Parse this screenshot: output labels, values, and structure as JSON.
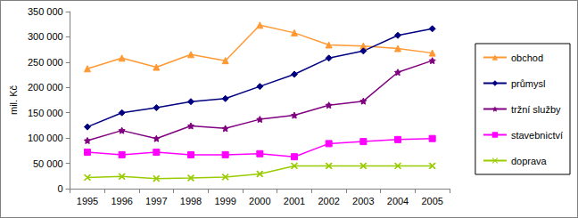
{
  "chart_data": {
    "type": "line",
    "y_label": "mil. Kč",
    "categories": [
      "1995",
      "1996",
      "1997",
      "1998",
      "1999",
      "2000",
      "2001",
      "2002",
      "2003",
      "2004",
      "2005"
    ],
    "series": [
      {
        "name": "obchod",
        "color": "#ff9933",
        "marker": "triangle",
        "values": [
          237000,
          258000,
          240000,
          265000,
          253000,
          323000,
          308000,
          284000,
          282000,
          277000,
          268000
        ]
      },
      {
        "name": "průmysl",
        "color": "#000080",
        "marker": "diamond",
        "values": [
          122000,
          150000,
          160000,
          172000,
          178000,
          202000,
          226000,
          258000,
          272000,
          303000,
          316000
        ]
      },
      {
        "name": "tržní služby",
        "color": "#800080",
        "marker": "star",
        "values": [
          95000,
          115000,
          99000,
          124000,
          119000,
          137000,
          145000,
          165000,
          173000,
          230000,
          253000
        ]
      },
      {
        "name": "stavebnictví",
        "color": "#ff00ff",
        "marker": "square",
        "values": [
          72000,
          67000,
          72000,
          67000,
          67000,
          69000,
          63000,
          89000,
          93000,
          97000,
          99000
        ]
      },
      {
        "name": "doprava",
        "color": "#99cc00",
        "marker": "cross",
        "values": [
          22000,
          24000,
          20000,
          21000,
          23000,
          29000,
          45000,
          45000,
          45000,
          45000,
          45000
        ]
      }
    ],
    "ylim": [
      0,
      350000
    ],
    "yticks": [
      0,
      {
        "value": 50000,
        "label": "50 000"
      },
      {
        "value": 100000,
        "label": "100 000"
      },
      {
        "value": 150000,
        "label": "150 000"
      },
      {
        "value": 200000,
        "label": "200 000"
      },
      {
        "value": 250000,
        "label": "250 000"
      },
      {
        "value": 300000,
        "label": "300 000"
      },
      {
        "value": 350000,
        "label": "350 000"
      }
    ],
    "grid": false,
    "legend": "right"
  }
}
